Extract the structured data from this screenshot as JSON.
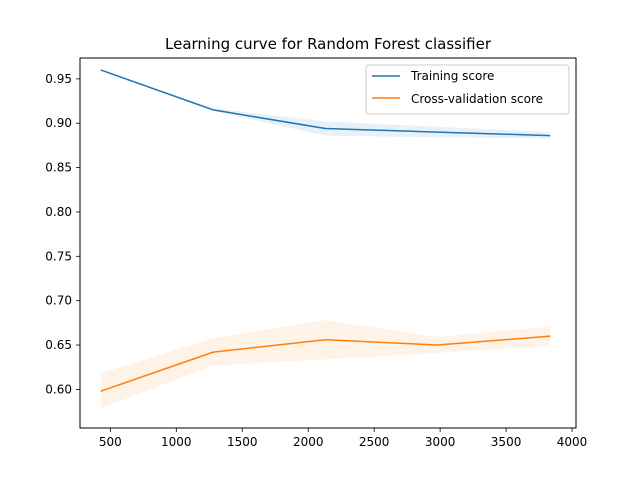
{
  "chart_data": {
    "type": "line",
    "title": "Learning curve for Random Forest classifier",
    "xlabel": "",
    "ylabel": "",
    "xlim": [
      270,
      4030
    ],
    "ylim": [
      0.5565,
      0.9735
    ],
    "x_ticks": [
      500,
      1000,
      1500,
      2000,
      2500,
      3000,
      3500,
      4000
    ],
    "x_tick_labels": [
      "500",
      "1000",
      "1500",
      "2000",
      "2500",
      "3000",
      "3500",
      "4000"
    ],
    "y_ticks": [
      0.6,
      0.65,
      0.7,
      0.75,
      0.8,
      0.85,
      0.9,
      0.95
    ],
    "y_tick_labels": [
      "0.60",
      "0.65",
      "0.70",
      "0.75",
      "0.80",
      "0.85",
      "0.90",
      "0.95"
    ],
    "grid": false,
    "legend_position": "upper-right",
    "x": [
      427,
      1280,
      2130,
      2980,
      3835
    ],
    "series": [
      {
        "name": "Training score",
        "color": "#1f77b4",
        "values": [
          0.96,
          0.915,
          0.894,
          0.89,
          0.886
        ],
        "band_lower": [
          0.96,
          0.914,
          0.886,
          0.884,
          0.883
        ],
        "band_upper": [
          0.96,
          0.917,
          0.902,
          0.896,
          0.89
        ]
      },
      {
        "name": "Cross-validation score",
        "color": "#ff7f0e",
        "values": [
          0.598,
          0.642,
          0.656,
          0.65,
          0.66
        ],
        "band_lower": [
          0.579,
          0.627,
          0.634,
          0.641,
          0.649
        ],
        "band_upper": [
          0.618,
          0.658,
          0.678,
          0.659,
          0.671
        ]
      }
    ]
  }
}
